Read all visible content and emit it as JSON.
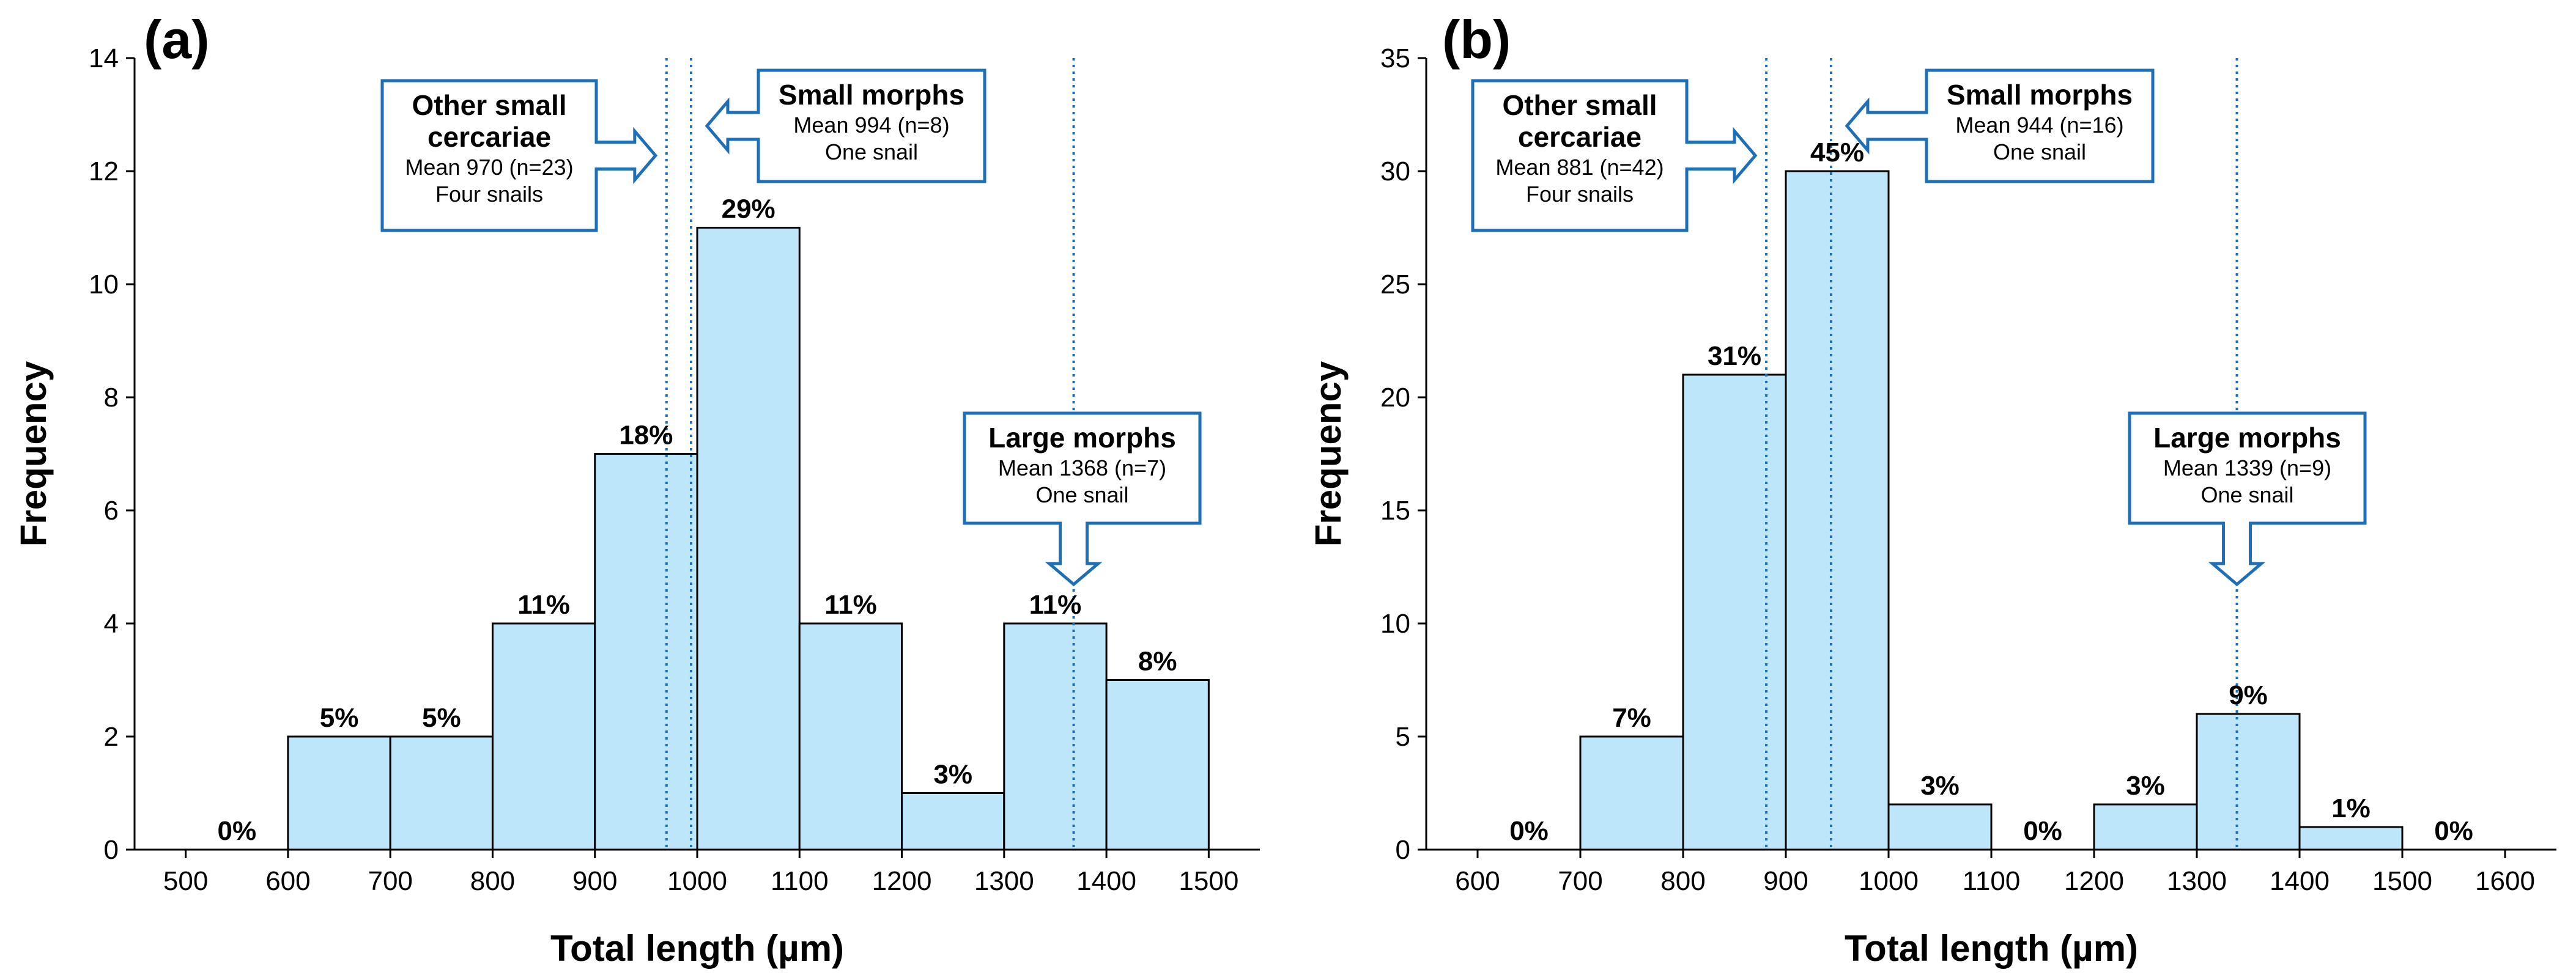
{
  "chart_data": [
    {
      "panel": "(a)",
      "type": "bar",
      "xlabel": "Total length (µm)",
      "ylabel": "Frequency",
      "xlim": [
        450,
        1550
      ],
      "ylim": [
        0,
        14
      ],
      "xticks": [
        "500",
        "600",
        "700",
        "800",
        "900",
        "1000",
        "1100",
        "1200",
        "1300",
        "1400",
        "1500"
      ],
      "yticks": [
        "0",
        "2",
        "4",
        "6",
        "8",
        "10",
        "12",
        "14"
      ],
      "bins": [
        {
          "start": 500,
          "end": 600,
          "value": 0,
          "label": "0%"
        },
        {
          "start": 600,
          "end": 700,
          "value": 2,
          "label": "5%"
        },
        {
          "start": 700,
          "end": 800,
          "value": 2,
          "label": "5%"
        },
        {
          "start": 800,
          "end": 900,
          "value": 4,
          "label": "11%"
        },
        {
          "start": 900,
          "end": 1000,
          "value": 7,
          "label": "18%"
        },
        {
          "start": 1000,
          "end": 1100,
          "value": 11,
          "label": "29%"
        },
        {
          "start": 1100,
          "end": 1200,
          "value": 4,
          "label": "11%"
        },
        {
          "start": 1200,
          "end": 1300,
          "value": 1,
          "label": "3%"
        },
        {
          "start": 1300,
          "end": 1400,
          "value": 4,
          "label": "11%"
        },
        {
          "start": 1400,
          "end": 1500,
          "value": 3,
          "label": "8%"
        }
      ],
      "mean_lines": [
        970,
        994,
        1368
      ],
      "annotations": [
        {
          "id": "other",
          "title": [
            "Other small",
            "cercariae"
          ],
          "lines": [
            "Mean 970 (n=23)",
            "Four snails"
          ],
          "arrow": "right",
          "target": 970
        },
        {
          "id": "small",
          "title": [
            "Small morphs"
          ],
          "lines": [
            "Mean 994 (n=8)",
            "One snail"
          ],
          "arrow": "left",
          "target": 994
        },
        {
          "id": "large",
          "title": [
            "Large morphs"
          ],
          "lines": [
            "Mean 1368 (n=7)",
            "One snail"
          ],
          "arrow": "down",
          "target": 1368
        }
      ]
    },
    {
      "panel": "(b)",
      "type": "bar",
      "xlabel": "Total length (µm)",
      "ylabel": "Frequency",
      "xlim": [
        550,
        1650
      ],
      "ylim": [
        0,
        35
      ],
      "xticks": [
        "600",
        "700",
        "800",
        "900",
        "1000",
        "1100",
        "1200",
        "1300",
        "1400",
        "1500",
        "1600"
      ],
      "yticks": [
        "0",
        "5",
        "10",
        "15",
        "20",
        "25",
        "30",
        "35"
      ],
      "bins": [
        {
          "start": 600,
          "end": 700,
          "value": 0,
          "label": "0%"
        },
        {
          "start": 700,
          "end": 800,
          "value": 5,
          "label": "7%"
        },
        {
          "start": 800,
          "end": 900,
          "value": 21,
          "label": "31%"
        },
        {
          "start": 900,
          "end": 1000,
          "value": 30,
          "label": "45%"
        },
        {
          "start": 1000,
          "end": 1100,
          "value": 2,
          "label": "3%"
        },
        {
          "start": 1100,
          "end": 1200,
          "value": 0,
          "label": "0%"
        },
        {
          "start": 1200,
          "end": 1300,
          "value": 2,
          "label": "3%"
        },
        {
          "start": 1300,
          "end": 1400,
          "value": 6,
          "label": "9%"
        },
        {
          "start": 1400,
          "end": 1500,
          "value": 1,
          "label": "1%"
        },
        {
          "start": 1500,
          "end": 1600,
          "value": 0,
          "label": "0%"
        }
      ],
      "mean_lines": [
        881,
        944,
        1339
      ],
      "annotations": [
        {
          "id": "other",
          "title": [
            "Other small",
            "cercariae"
          ],
          "lines": [
            "Mean 881 (n=42)",
            "Four snails"
          ],
          "arrow": "right",
          "target": 881
        },
        {
          "id": "small",
          "title": [
            "Small morphs"
          ],
          "lines": [
            "Mean 944 (n=16)",
            "One snail"
          ],
          "arrow": "left",
          "target": 944
        },
        {
          "id": "large",
          "title": [
            "Large morphs"
          ],
          "lines": [
            "Mean 1339 (n=9)",
            "One snail"
          ],
          "arrow": "down",
          "target": 1339
        }
      ]
    }
  ],
  "colors": {
    "bar_fill": "#BEE6FA",
    "bar_stroke": "#000000",
    "mean_line": "#1E6FB8",
    "callout_stroke": "#1E6FB8",
    "callout_fill": "#FFFFFF"
  }
}
